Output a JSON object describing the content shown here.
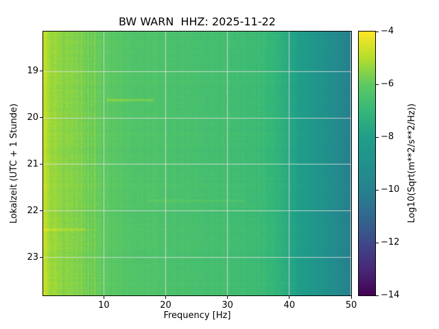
{
  "title": "BW WARN  HHZ: 2025-11-22",
  "axes": {
    "xlabel": "Frequency [Hz]",
    "ylabel": "Lokalzeit (UTC + 1 Stunde)",
    "x_ticks": [
      10,
      20,
      30,
      40,
      50
    ],
    "y_ticks": [
      19,
      20,
      21,
      22,
      23
    ]
  },
  "colorbar": {
    "label": "Log10(Sqrt(m**2/s**2/Hz))",
    "ticks": [
      -4,
      -6,
      -8,
      -10,
      -12,
      -14
    ],
    "vmin": -14,
    "vmax": -4
  },
  "chart_data": {
    "type": "heatmap",
    "title": "BW WARN  HHZ: 2025-11-22",
    "xlabel": "Frequency [Hz]",
    "ylabel": "Lokalzeit (UTC + 1 Stunde)",
    "colorbar_label": "Log10(Sqrt(m**2/s**2/Hz))",
    "x_range": [
      0.2,
      50
    ],
    "y_range": [
      18.15,
      23.81
    ],
    "value_range": [
      -14,
      -4
    ],
    "x_ticks": [
      10,
      20,
      30,
      40,
      50
    ],
    "y_ticks": [
      19,
      20,
      21,
      22,
      23
    ],
    "colorbar_ticks": [
      -4,
      -6,
      -8,
      -10,
      -12,
      -14
    ],
    "grid": true,
    "grid_color": "#dedede",
    "colormap": "viridis",
    "colormap_stops": [
      {
        "t": 0.0,
        "color": "#440154"
      },
      {
        "t": 0.1,
        "color": "#482878"
      },
      {
        "t": 0.2,
        "color": "#3e4989"
      },
      {
        "t": 0.3,
        "color": "#31688e"
      },
      {
        "t": 0.4,
        "color": "#26828e"
      },
      {
        "t": 0.5,
        "color": "#21918c"
      },
      {
        "t": 0.6,
        "color": "#1f9e89"
      },
      {
        "t": 0.7,
        "color": "#35b779"
      },
      {
        "t": 0.8,
        "color": "#5ec962"
      },
      {
        "t": 0.9,
        "color": "#b5de2b"
      },
      {
        "t": 1.0,
        "color": "#fde725"
      }
    ],
    "frequency_profile": {
      "frequency_hz": [
        0.2,
        0.7,
        1.2,
        2,
        3,
        5,
        8,
        10,
        12,
        15,
        20,
        25,
        30,
        35,
        38,
        40,
        43,
        46,
        48,
        50
      ],
      "value": [
        -4.8,
        -4.9,
        -5.2,
        -5.4,
        -5.45,
        -5.55,
        -5.75,
        -6.0,
        -6.15,
        -6.3,
        -6.4,
        -6.5,
        -6.6,
        -6.8,
        -7.1,
        -7.6,
        -8.3,
        -9.0,
        -9.5,
        -10.1
      ]
    },
    "events": [
      {
        "time": 19.62,
        "freq_min": 10.5,
        "freq_max": 18,
        "boost": 0.55
      },
      {
        "time": 21.78,
        "freq_min": 17,
        "freq_max": 33,
        "boost": 0.3
      },
      {
        "time": 22.4,
        "freq_min": 0.2,
        "freq_max": 7,
        "boost": 0.35
      }
    ]
  }
}
